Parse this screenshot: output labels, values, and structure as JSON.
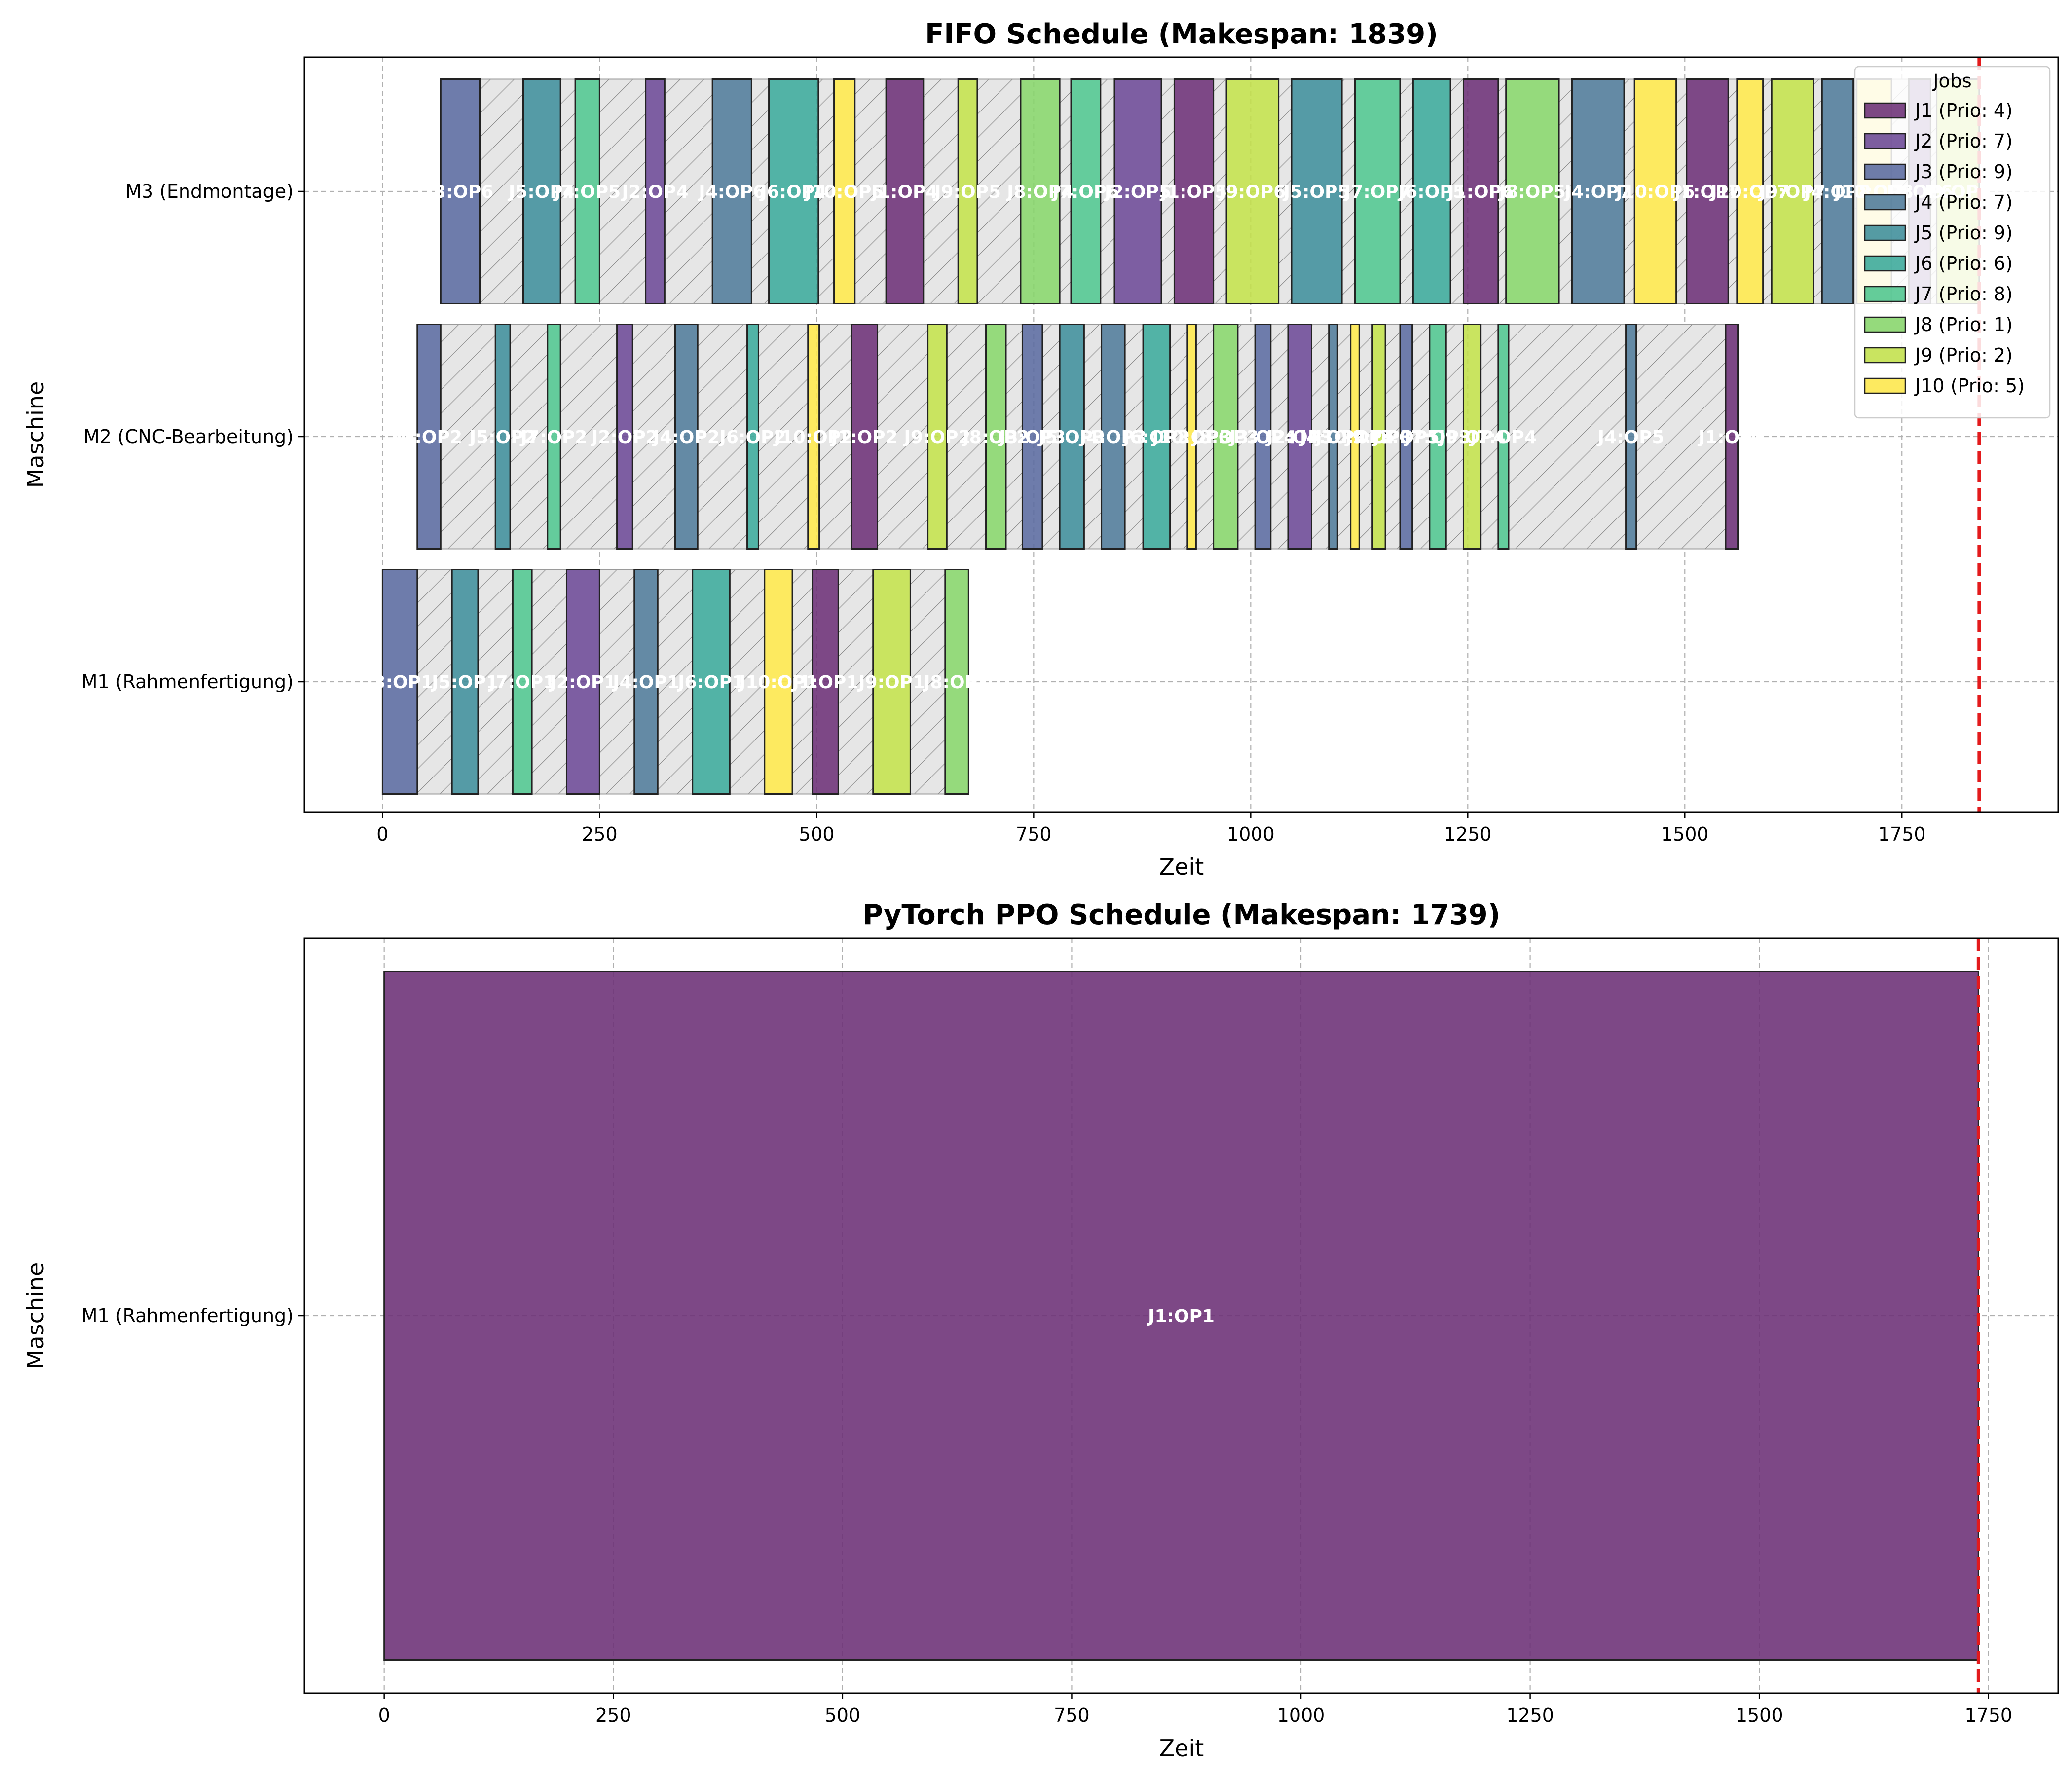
{
  "colors": {
    "J1": "#6b2f75",
    "J2": "#6b4895",
    "J3": "#5a6a9f",
    "J4": "#4f7a99",
    "J5": "#3d8d9a",
    "J6": "#3aa89a",
    "J7": "#4ec58e",
    "J8": "#86d56a",
    "J9": "#c2e04a",
    "J10": "#fde74a",
    "idle": "#d9d9d9",
    "makespan_line": "#e31a1c",
    "grid": "#b0b0b0"
  },
  "chart_data": [
    {
      "type": "gantt",
      "title": "FIFO Schedule (Makespan: 1839)",
      "xlabel": "Zeit",
      "ylabel": "Maschine",
      "xlim": [
        -90,
        1930
      ],
      "x_ticks": [
        0,
        250,
        500,
        750,
        1000,
        1250,
        1500,
        1750
      ],
      "machines": [
        "M1 (Rahmenfertigung)",
        "M2 (CNC-Bearbeitung)",
        "M3 (Endmontage)"
      ],
      "makespan": 1839,
      "grid": true,
      "legend": {
        "title": "Jobs",
        "placement": "upper-right",
        "entries": [
          {
            "job": "J1",
            "label": "J1 (Prio: 4)"
          },
          {
            "job": "J2",
            "label": "J2 (Prio: 7)"
          },
          {
            "job": "J3",
            "label": "J3 (Prio: 9)"
          },
          {
            "job": "J4",
            "label": "J4 (Prio: 7)"
          },
          {
            "job": "J5",
            "label": "J5 (Prio: 9)"
          },
          {
            "job": "J6",
            "label": "J6 (Prio: 6)"
          },
          {
            "job": "J7",
            "label": "J7 (Prio: 8)"
          },
          {
            "job": "J8",
            "label": "J8 (Prio: 1)"
          },
          {
            "job": "J9",
            "label": "J9 (Prio: 2)"
          },
          {
            "job": "J10",
            "label": "J10 (Prio: 5)"
          }
        ]
      },
      "tasks": [
        {
          "machine": 0,
          "job": "J3",
          "start": 0,
          "end": 40,
          "label": "J3:OP1"
        },
        {
          "machine": 0,
          "job": "J5",
          "start": 80,
          "end": 110,
          "label": "J5:OP1"
        },
        {
          "machine": 0,
          "job": "J7",
          "start": 150,
          "end": 172,
          "label": "J7:OP1"
        },
        {
          "machine": 0,
          "job": "J2",
          "start": 212,
          "end": 250,
          "label": "J2:OP1"
        },
        {
          "machine": 0,
          "job": "J4",
          "start": 290,
          "end": 317,
          "label": "J4:OP1"
        },
        {
          "machine": 0,
          "job": "J6",
          "start": 357,
          "end": 400,
          "label": "J6:OP1"
        },
        {
          "machine": 0,
          "job": "J10",
          "start": 440,
          "end": 472,
          "label": "J10:OP1"
        },
        {
          "machine": 0,
          "job": "J1",
          "start": 495,
          "end": 525,
          "label": "J1:OP1"
        },
        {
          "machine": 0,
          "job": "J9",
          "start": 565,
          "end": 608,
          "label": "J9:OP1"
        },
        {
          "machine": 0,
          "job": "J8",
          "start": 648,
          "end": 675,
          "label": "J8:OP1"
        },
        {
          "machine": 1,
          "job": "J3",
          "start": 40,
          "end": 67,
          "label": "J3:OP2"
        },
        {
          "machine": 1,
          "job": "J5",
          "start": 130,
          "end": 147,
          "label": "J5:OP2"
        },
        {
          "machine": 1,
          "job": "J7",
          "start": 190,
          "end": 205,
          "label": "J7:OP2"
        },
        {
          "machine": 1,
          "job": "J2",
          "start": 270,
          "end": 288,
          "label": "J2:OP2"
        },
        {
          "machine": 1,
          "job": "J4",
          "start": 337,
          "end": 363,
          "label": "J4:OP2"
        },
        {
          "machine": 1,
          "job": "J6",
          "start": 420,
          "end": 433,
          "label": "J6:OP2"
        },
        {
          "machine": 1,
          "job": "J10",
          "start": 490,
          "end": 503,
          "label": "J10:OP2"
        },
        {
          "machine": 1,
          "job": "J1",
          "start": 540,
          "end": 570,
          "label": "J1:OP2"
        },
        {
          "machine": 1,
          "job": "J9",
          "start": 628,
          "end": 650,
          "label": "J9:OP2"
        },
        {
          "machine": 1,
          "job": "J8",
          "start": 695,
          "end": 718,
          "label": "J8:OP2"
        },
        {
          "machine": 1,
          "job": "J3",
          "start": 737,
          "end": 760,
          "label": "J3:OP3"
        },
        {
          "machine": 1,
          "job": "J5",
          "start": 780,
          "end": 808,
          "label": "J5:OP3"
        },
        {
          "machine": 1,
          "job": "J4",
          "start": 828,
          "end": 855,
          "label": "J4:OP3"
        },
        {
          "machine": 1,
          "job": "J6",
          "start": 876,
          "end": 907,
          "label": "J6:OP3"
        },
        {
          "machine": 1,
          "job": "J10",
          "start": 927,
          "end": 937,
          "label": "J10:OP3"
        },
        {
          "machine": 1,
          "job": "J8",
          "start": 957,
          "end": 985,
          "label": "J8:OP3"
        },
        {
          "machine": 1,
          "job": "J3",
          "start": 1005,
          "end": 1023,
          "label": "J3:OP4"
        },
        {
          "machine": 1,
          "job": "J2",
          "start": 1043,
          "end": 1070,
          "label": "J2:OP3"
        },
        {
          "machine": 1,
          "job": "J4",
          "start": 1090,
          "end": 1100,
          "label": "J4:OP4"
        },
        {
          "machine": 1,
          "job": "J10",
          "start": 1115,
          "end": 1125,
          "label": "J10:OP4"
        },
        {
          "machine": 1,
          "job": "J9",
          "start": 1140,
          "end": 1155,
          "label": "J9:OP3"
        },
        {
          "machine": 1,
          "job": "J3",
          "start": 1172,
          "end": 1186,
          "label": "J3:OP5"
        },
        {
          "machine": 1,
          "job": "J7",
          "start": 1206,
          "end": 1225,
          "label": "J7:OP3"
        },
        {
          "machine": 1,
          "job": "J9",
          "start": 1245,
          "end": 1265,
          "label": "J9:OP4"
        },
        {
          "machine": 1,
          "job": "J7",
          "start": 1285,
          "end": 1297,
          "label": "J7:OP4"
        },
        {
          "machine": 1,
          "job": "J4",
          "start": 1432,
          "end": 1444,
          "label": "J4:OP5"
        },
        {
          "machine": 1,
          "job": "J1",
          "start": 1547,
          "end": 1561,
          "label": "J1:OP3"
        },
        {
          "machine": 2,
          "job": "J3",
          "start": 67,
          "end": 112,
          "label": "J3:OP6"
        },
        {
          "machine": 2,
          "job": "J5",
          "start": 162,
          "end": 205,
          "label": "J5:OP4"
        },
        {
          "machine": 2,
          "job": "J7",
          "start": 222,
          "end": 250,
          "label": "J7:OP5"
        },
        {
          "machine": 2,
          "job": "J2",
          "start": 303,
          "end": 325,
          "label": "J2:OP4"
        },
        {
          "machine": 2,
          "job": "J4",
          "start": 380,
          "end": 425,
          "label": "J4:OP6"
        },
        {
          "machine": 2,
          "job": "J6",
          "start": 445,
          "end": 502,
          "label": "J6:OP4"
        },
        {
          "machine": 2,
          "job": "J10",
          "start": 520,
          "end": 544,
          "label": "J10:OP5"
        },
        {
          "machine": 2,
          "job": "J1",
          "start": 580,
          "end": 623,
          "label": "J1:OP4"
        },
        {
          "machine": 2,
          "job": "J9",
          "start": 663,
          "end": 685,
          "label": "J9:OP5"
        },
        {
          "machine": 2,
          "job": "J8",
          "start": 735,
          "end": 780,
          "label": "J8:OP4"
        },
        {
          "machine": 2,
          "job": "J7",
          "start": 793,
          "end": 827,
          "label": "J7:OP6"
        },
        {
          "machine": 2,
          "job": "J2",
          "start": 843,
          "end": 897,
          "label": "J2:OP5"
        },
        {
          "machine": 2,
          "job": "J1",
          "start": 912,
          "end": 957,
          "label": "J1:OP5"
        },
        {
          "machine": 2,
          "job": "J9",
          "start": 972,
          "end": 1032,
          "label": "J9:OP6"
        },
        {
          "machine": 2,
          "job": "J5",
          "start": 1047,
          "end": 1105,
          "label": "J5:OP5"
        },
        {
          "machine": 2,
          "job": "J7",
          "start": 1120,
          "end": 1172,
          "label": "J7:OP7"
        },
        {
          "machine": 2,
          "job": "J6",
          "start": 1187,
          "end": 1230,
          "label": "J6:OP5"
        },
        {
          "machine": 2,
          "job": "J1",
          "start": 1245,
          "end": 1285,
          "label": "J1:OP6"
        },
        {
          "machine": 2,
          "job": "J8",
          "start": 1294,
          "end": 1355,
          "label": "J8:OP5"
        },
        {
          "machine": 2,
          "job": "J4",
          "start": 1370,
          "end": 1430,
          "label": "J4:OP7"
        },
        {
          "machine": 2,
          "job": "J10",
          "start": 1442,
          "end": 1490,
          "label": "J10:OP6"
        },
        {
          "machine": 2,
          "job": "J1",
          "start": 1502,
          "end": 1550,
          "label": "J1:OP7"
        },
        {
          "machine": 2,
          "job": "J10",
          "start": 1560,
          "end": 1590,
          "label": "J10:OP7"
        },
        {
          "machine": 2,
          "job": "J9",
          "start": 1600,
          "end": 1648,
          "label": "J9:OP7"
        },
        {
          "machine": 2,
          "job": "J4",
          "start": 1658,
          "end": 1694,
          "label": "J4:OP8"
        },
        {
          "machine": 2,
          "job": "J10",
          "start": 1698,
          "end": 1738,
          "label": "J10:OP8"
        },
        {
          "machine": 2,
          "job": "J2",
          "start": 1758,
          "end": 1783,
          "label": "J2:OP6"
        },
        {
          "machine": 2,
          "job": "J9",
          "start": 1790,
          "end": 1839,
          "label": "J9:OP8"
        }
      ]
    },
    {
      "type": "gantt",
      "title": "PyTorch PPO Schedule (Makespan: 1739)",
      "xlabel": "Zeit",
      "ylabel": "Maschine",
      "xlim": [
        -87,
        1826
      ],
      "x_ticks": [
        0,
        250,
        500,
        750,
        1000,
        1250,
        1500,
        1750
      ],
      "machines": [
        "M1 (Rahmenfertigung)"
      ],
      "makespan": 1739,
      "grid": true,
      "tasks": [
        {
          "machine": 0,
          "job": "J1",
          "start": 0,
          "end": 1739,
          "label": "J1:OP1"
        }
      ]
    }
  ]
}
